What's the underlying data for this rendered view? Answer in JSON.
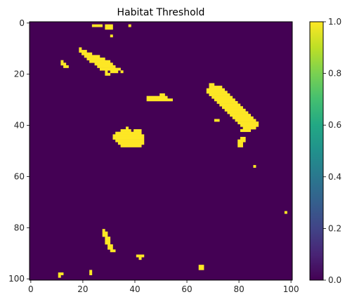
{
  "chart_data": {
    "type": "heatmap",
    "title": "Habitat Threshold",
    "xlabel": "",
    "ylabel": "",
    "grid_size": [
      101,
      101
    ],
    "xlim": [
      0,
      100
    ],
    "ylim": [
      100,
      0
    ],
    "x_ticks": [
      0,
      20,
      40,
      60,
      80,
      100
    ],
    "y_ticks": [
      0,
      20,
      40,
      60,
      80,
      100
    ],
    "colorbar": {
      "range": [
        0.0,
        1.0
      ],
      "ticks": [
        "0.0",
        "0.2",
        "0.4",
        "0.6",
        "0.8",
        "1.0"
      ]
    },
    "colormap": "viridis",
    "background_value": 0,
    "colors": {
      "low": "#440154",
      "high": "#fde725"
    },
    "patches_value_1_as_row_spans": [
      {
        "row": 1,
        "spans": [
          [
            24,
            27
          ],
          [
            29,
            31
          ],
          [
            38,
            38
          ]
        ]
      },
      {
        "row": 2,
        "spans": [
          [
            29,
            31
          ]
        ]
      },
      {
        "row": 5,
        "spans": [
          [
            31,
            31
          ]
        ]
      },
      {
        "row": 10,
        "spans": [
          [
            19,
            19
          ]
        ]
      },
      {
        "row": 11,
        "spans": [
          [
            19,
            21
          ]
        ]
      },
      {
        "row": 12,
        "spans": [
          [
            20,
            23
          ]
        ]
      },
      {
        "row": 13,
        "spans": [
          [
            21,
            26
          ]
        ]
      },
      {
        "row": 14,
        "spans": [
          [
            22,
            28
          ]
        ]
      },
      {
        "row": 15,
        "spans": [
          [
            12,
            12
          ],
          [
            23,
            30
          ]
        ]
      },
      {
        "row": 16,
        "spans": [
          [
            12,
            13
          ],
          [
            25,
            31
          ]
        ]
      },
      {
        "row": 17,
        "spans": [
          [
            13,
            14
          ],
          [
            26,
            32
          ]
        ]
      },
      {
        "row": 18,
        "spans": [
          [
            27,
            34
          ]
        ]
      },
      {
        "row": 19,
        "spans": [
          [
            29,
            29
          ],
          [
            31,
            33
          ],
          [
            35,
            35
          ]
        ]
      },
      {
        "row": 20,
        "spans": [
          [
            29,
            30
          ]
        ]
      },
      {
        "row": 24,
        "spans": [
          [
            69,
            70
          ]
        ]
      },
      {
        "row": 25,
        "spans": [
          [
            69,
            73
          ]
        ]
      },
      {
        "row": 26,
        "spans": [
          [
            68,
            74
          ]
        ]
      },
      {
        "row": 27,
        "spans": [
          [
            68,
            75
          ]
        ]
      },
      {
        "row": 28,
        "spans": [
          [
            69,
            76
          ],
          [
            50,
            51
          ]
        ]
      },
      {
        "row": 29,
        "spans": [
          [
            45,
            52
          ],
          [
            70,
            77
          ]
        ]
      },
      {
        "row": 30,
        "spans": [
          [
            45,
            54
          ],
          [
            71,
            78
          ]
        ]
      },
      {
        "row": 31,
        "spans": [
          [
            72,
            79
          ]
        ]
      },
      {
        "row": 32,
        "spans": [
          [
            73,
            80
          ]
        ]
      },
      {
        "row": 33,
        "spans": [
          [
            74,
            81
          ]
        ]
      },
      {
        "row": 34,
        "spans": [
          [
            75,
            82
          ]
        ]
      },
      {
        "row": 35,
        "spans": [
          [
            76,
            83
          ]
        ]
      },
      {
        "row": 36,
        "spans": [
          [
            77,
            84
          ]
        ]
      },
      {
        "row": 37,
        "spans": [
          [
            78,
            85
          ]
        ]
      },
      {
        "row": 38,
        "spans": [
          [
            71,
            72
          ],
          [
            79,
            86
          ]
        ]
      },
      {
        "row": 39,
        "spans": [
          [
            80,
            87
          ]
        ]
      },
      {
        "row": 40,
        "spans": [
          [
            81,
            87
          ]
        ]
      },
      {
        "row": 41,
        "spans": [
          [
            37,
            37
          ],
          [
            82,
            86
          ]
        ]
      },
      {
        "row": 42,
        "spans": [
          [
            35,
            38
          ],
          [
            40,
            42
          ],
          [
            81,
            84
          ]
        ]
      },
      {
        "row": 43,
        "spans": [
          [
            33,
            42
          ]
        ]
      },
      {
        "row": 44,
        "spans": [
          [
            32,
            43
          ]
        ]
      },
      {
        "row": 45,
        "spans": [
          [
            32,
            43
          ],
          [
            81,
            82
          ]
        ]
      },
      {
        "row": 46,
        "spans": [
          [
            33,
            43
          ],
          [
            80,
            82
          ]
        ]
      },
      {
        "row": 47,
        "spans": [
          [
            34,
            43
          ],
          [
            80,
            81
          ]
        ]
      },
      {
        "row": 48,
        "spans": [
          [
            35,
            42
          ],
          [
            80,
            81
          ]
        ]
      },
      {
        "row": 56,
        "spans": [
          [
            86,
            86
          ]
        ]
      },
      {
        "row": 74,
        "spans": [
          [
            98,
            98
          ]
        ]
      },
      {
        "row": 81,
        "spans": [
          [
            28,
            28
          ]
        ]
      },
      {
        "row": 82,
        "spans": [
          [
            28,
            29
          ]
        ]
      },
      {
        "row": 83,
        "spans": [
          [
            28,
            29
          ]
        ]
      },
      {
        "row": 84,
        "spans": [
          [
            29,
            30
          ]
        ]
      },
      {
        "row": 85,
        "spans": [
          [
            29,
            30
          ]
        ]
      },
      {
        "row": 86,
        "spans": [
          [
            29,
            30
          ]
        ]
      },
      {
        "row": 87,
        "spans": [
          [
            30,
            31
          ]
        ]
      },
      {
        "row": 88,
        "spans": [
          [
            30,
            31
          ]
        ]
      },
      {
        "row": 89,
        "spans": [
          [
            31,
            32
          ]
        ]
      },
      {
        "row": 91,
        "spans": [
          [
            41,
            43
          ]
        ]
      },
      {
        "row": 92,
        "spans": [
          [
            42,
            42
          ]
        ]
      },
      {
        "row": 95,
        "spans": [
          [
            65,
            66
          ]
        ]
      },
      {
        "row": 96,
        "spans": [
          [
            65,
            66
          ]
        ]
      },
      {
        "row": 97,
        "spans": [
          [
            23,
            23
          ]
        ]
      },
      {
        "row": 98,
        "spans": [
          [
            11,
            12
          ],
          [
            23,
            23
          ]
        ]
      },
      {
        "row": 99,
        "spans": [
          [
            11,
            11
          ]
        ]
      }
    ]
  }
}
